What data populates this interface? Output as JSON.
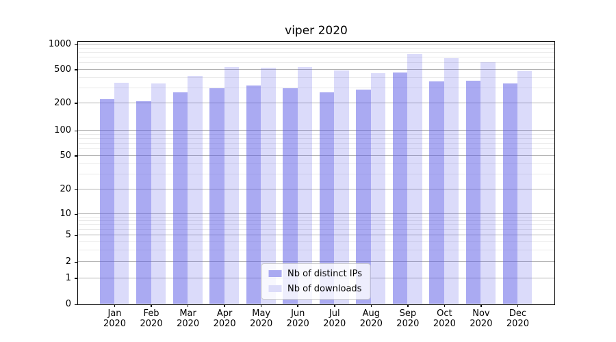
{
  "chart_data": {
    "type": "bar",
    "title": "viper 2020",
    "categories": [
      {
        "label": "Jan",
        "sublabel": "2020"
      },
      {
        "label": "Feb",
        "sublabel": "2020"
      },
      {
        "label": "Mar",
        "sublabel": "2020"
      },
      {
        "label": "Apr",
        "sublabel": "2020"
      },
      {
        "label": "May",
        "sublabel": "2020"
      },
      {
        "label": "Jun",
        "sublabel": "2020"
      },
      {
        "label": "Jul",
        "sublabel": "2020"
      },
      {
        "label": "Aug",
        "sublabel": "2020"
      },
      {
        "label": "Sep",
        "sublabel": "2020"
      },
      {
        "label": "Oct",
        "sublabel": "2020"
      },
      {
        "label": "Nov",
        "sublabel": "2020"
      },
      {
        "label": "Dec",
        "sublabel": "2020"
      }
    ],
    "series": [
      {
        "name": "Nb of distinct IPs",
        "color": "rgba(85,85,230,0.5)",
        "legend_color": "#aaaaf1",
        "values": [
          220,
          210,
          265,
          300,
          320,
          300,
          266,
          288,
          458,
          360,
          368,
          342
        ]
      },
      {
        "name": "Nb of downloads",
        "color": "rgba(85,85,230,0.21)",
        "legend_color": "#dcdcf9",
        "values": [
          345,
          338,
          420,
          530,
          525,
          528,
          482,
          450,
          760,
          680,
          610,
          475
        ]
      }
    ],
    "y_scale": "symlog",
    "y_ticks": [
      0,
      1,
      2,
      5,
      10,
      20,
      50,
      100,
      200,
      500,
      1000
    ],
    "y_minor_ticks": [
      3,
      4,
      6,
      7,
      8,
      9,
      30,
      40,
      60,
      70,
      80,
      90,
      300,
      400,
      600,
      700,
      800,
      900
    ],
    "ylim": [
      0,
      1000
    ],
    "xlabel": "",
    "ylabel": "",
    "grid": "both",
    "legend_position": "lower center",
    "colors": {
      "grid_major": "#b0b0b0",
      "grid_minor": "#e9e9e9",
      "spine": "#000000",
      "background": "#ffffff",
      "text": "#000000"
    }
  }
}
